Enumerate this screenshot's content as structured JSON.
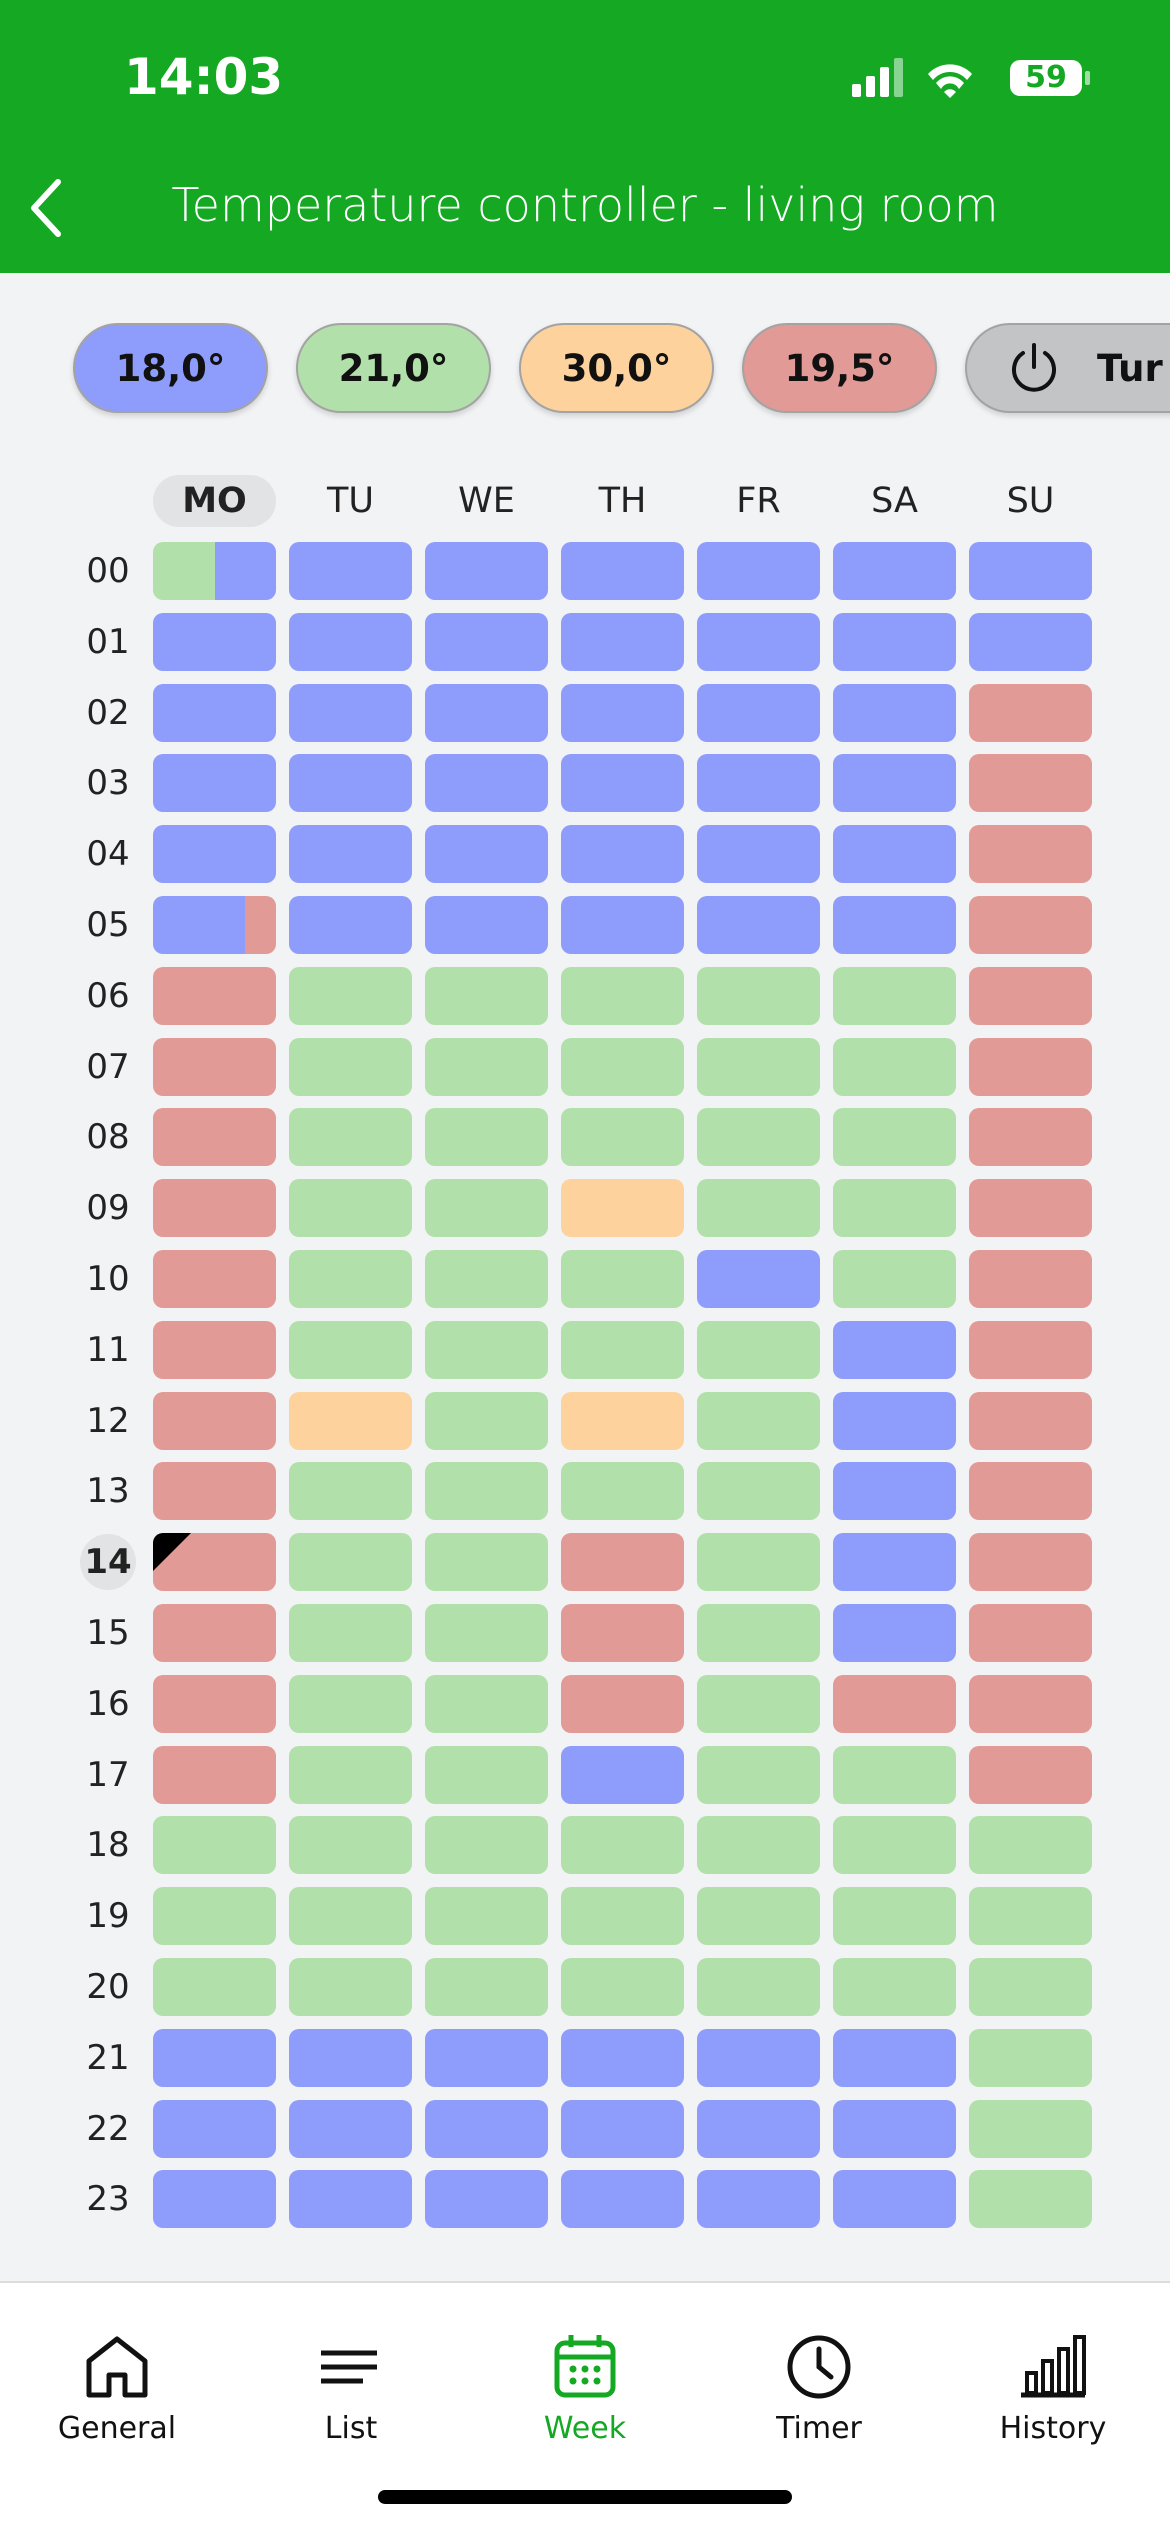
{
  "status_bar": {
    "time": "14:03",
    "battery": "59"
  },
  "header": {
    "title": "Temperature controller - living room"
  },
  "presets": [
    {
      "label": "18,0°",
      "color": "#8e9cfc"
    },
    {
      "label": "21,0°",
      "color": "#b2e0aa"
    },
    {
      "label": "30,0°",
      "color": "#fed29d"
    },
    {
      "label": "19,5°",
      "color": "#e19a95"
    },
    {
      "label": "Tur",
      "color": "#c3c4c6",
      "power": true
    }
  ],
  "week": {
    "days": [
      "MO",
      "TU",
      "WE",
      "TH",
      "FR",
      "SA",
      "SU"
    ],
    "hours": [
      "00",
      "01",
      "02",
      "03",
      "04",
      "05",
      "06",
      "07",
      "08",
      "09",
      "10",
      "11",
      "12",
      "13",
      "14",
      "15",
      "16",
      "17",
      "18",
      "19",
      "20",
      "21",
      "22",
      "23"
    ],
    "today_index": 0,
    "current_hour_index": 14,
    "schedule": [
      [
        [
          [
            1,
            0.5
          ],
          [
            0,
            0.5
          ]
        ],
        0,
        0,
        0,
        0,
        0,
        0
      ],
      [
        0,
        0,
        0,
        0,
        0,
        0,
        0
      ],
      [
        0,
        0,
        0,
        0,
        0,
        0,
        3
      ],
      [
        0,
        0,
        0,
        0,
        0,
        0,
        3
      ],
      [
        0,
        0,
        0,
        0,
        0,
        0,
        3
      ],
      [
        [
          [
            0,
            0.75
          ],
          [
            3,
            0.25
          ]
        ],
        0,
        0,
        0,
        0,
        0,
        3
      ],
      [
        3,
        1,
        1,
        1,
        1,
        1,
        3
      ],
      [
        3,
        1,
        1,
        1,
        1,
        1,
        3
      ],
      [
        3,
        1,
        1,
        1,
        1,
        1,
        3
      ],
      [
        3,
        1,
        1,
        2,
        1,
        1,
        3
      ],
      [
        3,
        1,
        1,
        1,
        0,
        1,
        3
      ],
      [
        3,
        1,
        1,
        1,
        1,
        0,
        3
      ],
      [
        3,
        2,
        1,
        2,
        1,
        0,
        3
      ],
      [
        3,
        1,
        1,
        1,
        1,
        0,
        3
      ],
      [
        3,
        1,
        1,
        3,
        1,
        0,
        3
      ],
      [
        3,
        1,
        1,
        3,
        1,
        0,
        3
      ],
      [
        3,
        1,
        1,
        3,
        1,
        3,
        3
      ],
      [
        3,
        1,
        1,
        0,
        1,
        1,
        3
      ],
      [
        1,
        1,
        1,
        1,
        1,
        1,
        1
      ],
      [
        1,
        1,
        1,
        1,
        1,
        1,
        1
      ],
      [
        1,
        1,
        1,
        1,
        1,
        1,
        1
      ],
      [
        0,
        0,
        0,
        0,
        0,
        0,
        1
      ],
      [
        0,
        0,
        0,
        0,
        0,
        0,
        1
      ],
      [
        0,
        0,
        0,
        0,
        0,
        0,
        1
      ]
    ]
  },
  "nav": {
    "items": [
      "General",
      "List",
      "Week",
      "Timer",
      "History"
    ],
    "active_index": 2
  }
}
